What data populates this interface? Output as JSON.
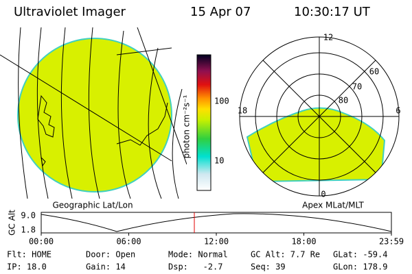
{
  "header": {
    "title": "Ultraviolet Imager",
    "date": "15 Apr 07",
    "time": "10:30:17 UT"
  },
  "left_panel": {
    "label": "Geographic Lat/Lon"
  },
  "colorbar": {
    "label": "photon cm⁻²s⁻¹",
    "ticks": [
      "100",
      "10"
    ]
  },
  "right_panel": {
    "label": "Apex MLat/MLT",
    "hours": [
      "12",
      "18",
      "6",
      "0"
    ],
    "latitudes": [
      "60",
      "70",
      "80"
    ]
  },
  "timeline": {
    "y_label": "GC Alt",
    "yticks": [
      "9.0",
      "1.8"
    ],
    "xticks": [
      "00:00",
      "06:00",
      "12:00",
      "18:00",
      "23:59"
    ]
  },
  "status": {
    "rows": [
      [
        "Flt: HOME",
        "Door: Open",
        "Mode: Normal",
        "GC Alt: 7.7 Re",
        "GLat: -59.4"
      ],
      [
        "IP: 18.0",
        "Gain: 14",
        "Dsp:   -2.7",
        "Seq: 39",
        "GLon: 178.9"
      ]
    ]
  }
}
